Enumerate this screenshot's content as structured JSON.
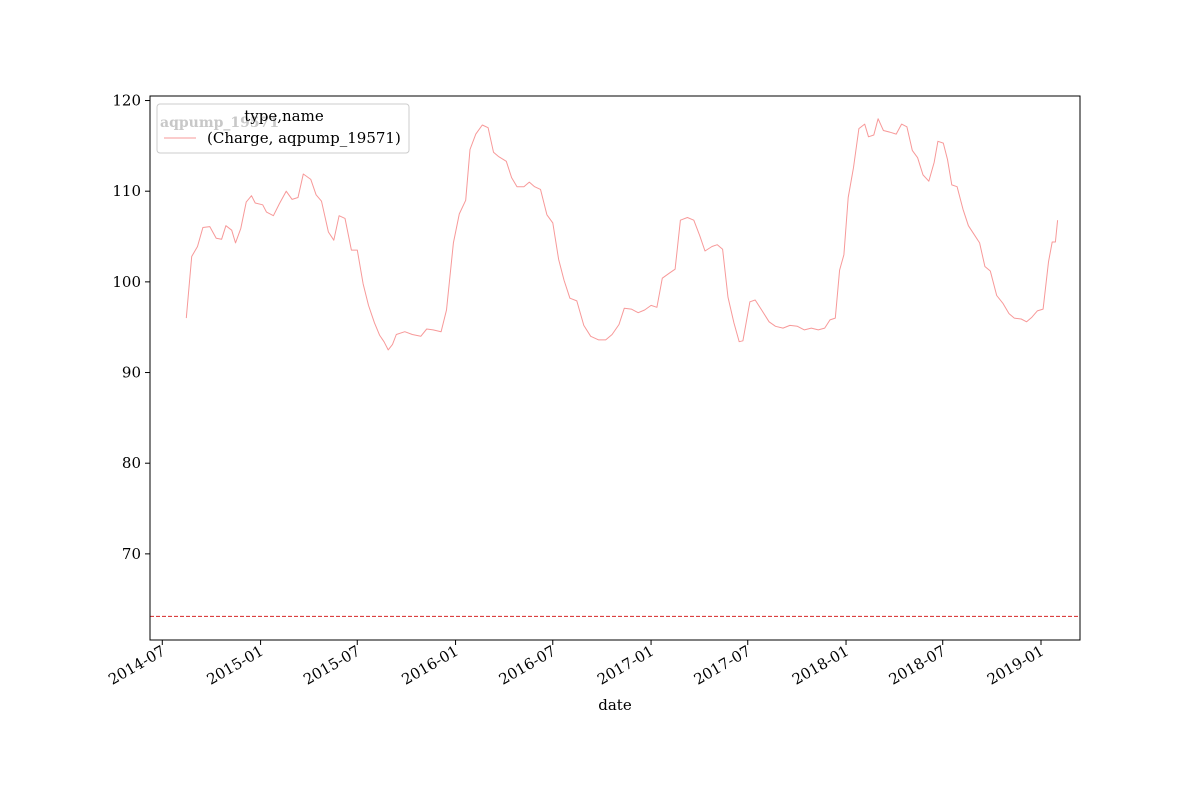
{
  "chart_data": {
    "type": "line",
    "title": "",
    "xlabel": "date",
    "ylabel": "",
    "x_axis_type": "date",
    "xlim": [
      "2014-06-08",
      "2019-03-15"
    ],
    "ylim": [
      60.5,
      120.5
    ],
    "grid": false,
    "x_ticks": [
      "2014-07-01",
      "2015-01-01",
      "2015-07-01",
      "2016-01-01",
      "2016-07-01",
      "2017-01-01",
      "2017-07-01",
      "2018-01-01",
      "2018-07-01",
      "2019-01-01"
    ],
    "x_tick_labels": [
      "2014-07",
      "2015-01",
      "2015-07",
      "2016-01",
      "2016-07",
      "2017-01",
      "2017-07",
      "2018-01",
      "2018-07",
      "2019-01"
    ],
    "y_ticks": [
      70,
      80,
      90,
      100,
      110,
      120
    ],
    "y_tick_labels": [
      "70",
      "80",
      "90",
      "100",
      "110",
      "120"
    ],
    "watermark": "aqpump_19571",
    "legend": {
      "title": "type,name",
      "placement": "upper-left",
      "entries": [
        "(Charge, aqpump_19571)"
      ]
    },
    "reference_line": {
      "orientation": "horizontal",
      "y": 63.1,
      "color": "#d62728",
      "style": "dashed"
    },
    "series": [
      {
        "name": "(Charge, aqpump_19571)",
        "color": "#f79999",
        "points": [
          [
            "2014-08-15",
            96.0
          ],
          [
            "2014-08-25",
            102.8
          ],
          [
            "2014-09-05",
            103.9
          ],
          [
            "2014-09-15",
            106.0
          ],
          [
            "2014-09-28",
            106.1
          ],
          [
            "2014-10-10",
            104.8
          ],
          [
            "2014-10-20",
            104.7
          ],
          [
            "2014-10-28",
            106.2
          ],
          [
            "2014-11-08",
            105.7
          ],
          [
            "2014-11-15",
            104.3
          ],
          [
            "2014-11-25",
            105.9
          ],
          [
            "2014-12-05",
            108.8
          ],
          [
            "2014-12-15",
            109.5
          ],
          [
            "2014-12-22",
            108.7
          ],
          [
            "2015-01-05",
            108.5
          ],
          [
            "2015-01-12",
            107.7
          ],
          [
            "2015-01-25",
            107.3
          ],
          [
            "2015-02-05",
            108.6
          ],
          [
            "2015-02-18",
            110.0
          ],
          [
            "2015-03-01",
            109.1
          ],
          [
            "2015-03-12",
            109.3
          ],
          [
            "2015-03-22",
            111.9
          ],
          [
            "2015-04-05",
            111.3
          ],
          [
            "2015-04-15",
            109.6
          ],
          [
            "2015-04-25",
            108.9
          ],
          [
            "2015-05-08",
            105.5
          ],
          [
            "2015-05-18",
            104.6
          ],
          [
            "2015-05-28",
            107.3
          ],
          [
            "2015-06-08",
            107.0
          ],
          [
            "2015-06-20",
            103.5
          ],
          [
            "2015-07-01",
            103.5
          ],
          [
            "2015-07-12",
            99.8
          ],
          [
            "2015-07-22",
            97.4
          ],
          [
            "2015-08-02",
            95.5
          ],
          [
            "2015-08-12",
            94.1
          ],
          [
            "2015-08-20",
            93.4
          ],
          [
            "2015-08-28",
            92.5
          ],
          [
            "2015-09-05",
            93.1
          ],
          [
            "2015-09-12",
            94.2
          ],
          [
            "2015-09-28",
            94.5
          ],
          [
            "2015-10-12",
            94.2
          ],
          [
            "2015-10-28",
            94.0
          ],
          [
            "2015-11-08",
            94.8
          ],
          [
            "2015-11-20",
            94.7
          ],
          [
            "2015-12-05",
            94.5
          ],
          [
            "2015-12-15",
            96.9
          ],
          [
            "2015-12-28",
            104.3
          ],
          [
            "2016-01-08",
            107.5
          ],
          [
            "2016-01-20",
            109.0
          ],
          [
            "2016-01-28",
            114.6
          ],
          [
            "2016-02-08",
            116.3
          ],
          [
            "2016-02-20",
            117.3
          ],
          [
            "2016-03-02",
            117.0
          ],
          [
            "2016-03-12",
            114.3
          ],
          [
            "2016-03-22",
            113.8
          ],
          [
            "2016-04-05",
            113.3
          ],
          [
            "2016-04-15",
            111.5
          ],
          [
            "2016-04-25",
            110.5
          ],
          [
            "2016-05-08",
            110.5
          ],
          [
            "2016-05-18",
            111.0
          ],
          [
            "2016-05-28",
            110.5
          ],
          [
            "2016-06-08",
            110.2
          ],
          [
            "2016-06-20",
            107.4
          ],
          [
            "2016-07-01",
            106.5
          ],
          [
            "2016-07-12",
            102.5
          ],
          [
            "2016-07-22",
            100.2
          ],
          [
            "2016-08-02",
            98.2
          ],
          [
            "2016-08-15",
            97.9
          ],
          [
            "2016-08-28",
            95.2
          ],
          [
            "2016-09-10",
            94.0
          ],
          [
            "2016-09-25",
            93.6
          ],
          [
            "2016-10-08",
            93.6
          ],
          [
            "2016-10-20",
            94.2
          ],
          [
            "2016-11-02",
            95.3
          ],
          [
            "2016-11-12",
            97.1
          ],
          [
            "2016-11-25",
            97.0
          ],
          [
            "2016-12-08",
            96.6
          ],
          [
            "2016-12-20",
            96.9
          ],
          [
            "2017-01-01",
            97.4
          ],
          [
            "2017-01-12",
            97.2
          ],
          [
            "2017-01-22",
            100.4
          ],
          [
            "2017-02-05",
            101.0
          ],
          [
            "2017-02-15",
            101.4
          ],
          [
            "2017-02-25",
            106.8
          ],
          [
            "2017-03-10",
            107.1
          ],
          [
            "2017-03-22",
            106.8
          ],
          [
            "2017-04-02",
            105.1
          ],
          [
            "2017-04-12",
            103.4
          ],
          [
            "2017-04-25",
            103.9
          ],
          [
            "2017-05-05",
            104.1
          ],
          [
            "2017-05-15",
            103.6
          ],
          [
            "2017-05-25",
            98.3
          ],
          [
            "2017-06-05",
            95.5
          ],
          [
            "2017-06-15",
            93.4
          ],
          [
            "2017-06-22",
            93.5
          ],
          [
            "2017-07-05",
            97.8
          ],
          [
            "2017-07-15",
            98.0
          ],
          [
            "2017-07-28",
            96.8
          ],
          [
            "2017-08-10",
            95.6
          ],
          [
            "2017-08-22",
            95.1
          ],
          [
            "2017-09-05",
            94.9
          ],
          [
            "2017-09-18",
            95.2
          ],
          [
            "2017-10-02",
            95.1
          ],
          [
            "2017-10-15",
            94.7
          ],
          [
            "2017-10-28",
            94.9
          ],
          [
            "2017-11-10",
            94.7
          ],
          [
            "2017-11-22",
            94.9
          ],
          [
            "2017-12-02",
            95.8
          ],
          [
            "2017-12-12",
            96.0
          ],
          [
            "2017-12-20",
            101.3
          ],
          [
            "2017-12-28",
            103.0
          ],
          [
            "2018-01-05",
            109.3
          ],
          [
            "2018-01-15",
            112.6
          ],
          [
            "2018-01-25",
            116.9
          ],
          [
            "2018-02-05",
            117.4
          ],
          [
            "2018-02-12",
            116.0
          ],
          [
            "2018-02-22",
            116.2
          ],
          [
            "2018-03-02",
            118.0
          ],
          [
            "2018-03-12",
            116.7
          ],
          [
            "2018-03-25",
            116.5
          ],
          [
            "2018-04-05",
            116.3
          ],
          [
            "2018-04-15",
            117.4
          ],
          [
            "2018-04-25",
            117.1
          ],
          [
            "2018-05-05",
            114.5
          ],
          [
            "2018-05-15",
            113.7
          ],
          [
            "2018-05-25",
            111.8
          ],
          [
            "2018-06-05",
            111.1
          ],
          [
            "2018-06-15",
            113.2
          ],
          [
            "2018-06-22",
            115.5
          ],
          [
            "2018-07-02",
            115.3
          ],
          [
            "2018-07-10",
            113.5
          ],
          [
            "2018-07-18",
            110.7
          ],
          [
            "2018-07-28",
            110.5
          ],
          [
            "2018-08-08",
            108.0
          ],
          [
            "2018-08-18",
            106.2
          ],
          [
            "2018-08-28",
            105.3
          ],
          [
            "2018-09-08",
            104.3
          ],
          [
            "2018-09-18",
            101.7
          ],
          [
            "2018-09-28",
            101.2
          ],
          [
            "2018-10-10",
            98.5
          ],
          [
            "2018-10-22",
            97.6
          ],
          [
            "2018-11-02",
            96.5
          ],
          [
            "2018-11-12",
            96.0
          ],
          [
            "2018-11-25",
            95.9
          ],
          [
            "2018-12-05",
            95.6
          ],
          [
            "2018-12-15",
            96.1
          ],
          [
            "2018-12-25",
            96.8
          ],
          [
            "2019-01-05",
            97.0
          ],
          [
            "2019-01-15",
            102.2
          ],
          [
            "2019-01-22",
            104.4
          ],
          [
            "2019-01-28",
            104.4
          ],
          [
            "2019-02-01",
            106.8
          ]
        ]
      }
    ]
  }
}
